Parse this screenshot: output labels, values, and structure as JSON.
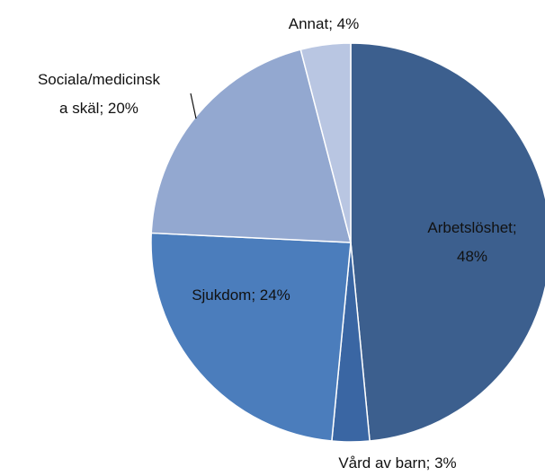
{
  "chart_data": {
    "type": "pie",
    "values": [
      48,
      3,
      24,
      20,
      4
    ],
    "value_labels": [
      [
        "Arbetslöshet;",
        "48%"
      ],
      [
        "Vård av barn; 3%"
      ],
      [
        "Sjukdom; 24%"
      ],
      [
        "Sociala/medicinsk",
        "a skäl; 20%"
      ],
      [
        "Annat; 4%"
      ]
    ],
    "colors": [
      "#3c5f8e",
      "#3a66a3",
      "#4b7dbc",
      "#93a8d0",
      "#b9c6e2"
    ]
  }
}
